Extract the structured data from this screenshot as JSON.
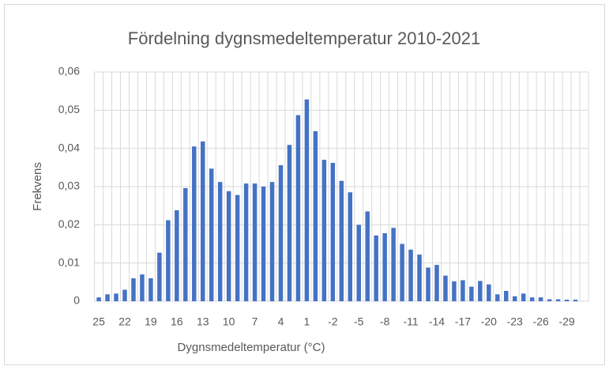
{
  "chart_data": {
    "type": "bar",
    "title": "Fördelning dygnsmedeltemperatur  2010-2021",
    "x_label": "Dygnsmedeltemperatur (°C)",
    "y_label": "Frekvens",
    "categories": [
      "25",
      null,
      null,
      "22",
      null,
      null,
      "19",
      null,
      null,
      "16",
      null,
      null,
      "13",
      null,
      null,
      "10",
      null,
      null,
      "7",
      null,
      null,
      "4",
      null,
      null,
      "1",
      null,
      null,
      "-2",
      null,
      null,
      "-5",
      null,
      null,
      "-8",
      null,
      null,
      "-11",
      null,
      null,
      "-14",
      null,
      null,
      "-17",
      null,
      null,
      "-20",
      null,
      null,
      "-23",
      null,
      null,
      "-26",
      null,
      null,
      "-29",
      null,
      null
    ],
    "values": [
      0.001,
      0.0018,
      0.002,
      0.003,
      0.006,
      0.007,
      0.006,
      0.0127,
      0.0212,
      0.0238,
      0.0296,
      0.0405,
      0.0418,
      0.0347,
      0.0312,
      0.0288,
      0.0278,
      0.0308,
      0.0308,
      0.03,
      0.0312,
      0.0356,
      0.0409,
      0.0487,
      0.0528,
      0.0445,
      0.037,
      0.0362,
      0.0315,
      0.0285,
      0.02,
      0.0235,
      0.0172,
      0.0178,
      0.0192,
      0.015,
      0.0135,
      0.0122,
      0.0088,
      0.0095,
      0.0067,
      0.0052,
      0.0055,
      0.0038,
      0.0053,
      0.0044,
      0.0018,
      0.0027,
      0.0013,
      0.002,
      0.001,
      0.001,
      0.0005,
      0.0005,
      0.0004,
      0.0004,
      0
    ],
    "color": "#4472c4",
    "ylim": [
      0,
      0.06
    ],
    "yticks": [
      0,
      {
        "value": 0.01,
        "label": "0,01"
      },
      {
        "value": 0.02,
        "label": "0,02"
      },
      {
        "value": 0.03,
        "label": "0,03"
      },
      {
        "value": 0.04,
        "label": "0,04"
      },
      {
        "value": 0.05,
        "label": "0,05"
      },
      {
        "value": 0.06,
        "label": "0,06"
      }
    ],
    "grid": true
  }
}
